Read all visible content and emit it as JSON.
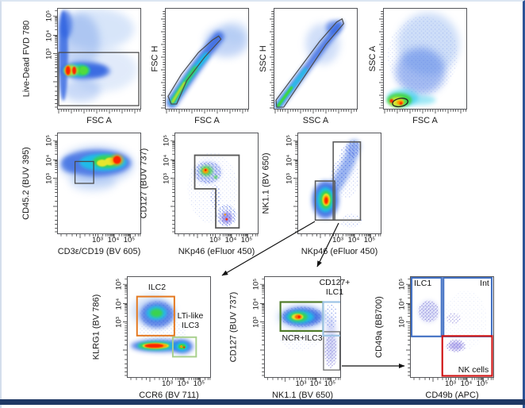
{
  "figure": {
    "description": "Flow cytometry gating strategy for innate lymphoid cell (ILC) and NK cell subsets",
    "border_accent_color": "#2E5496",
    "bottom_bar_color": "#1F3864"
  },
  "chart_data": [
    {
      "id": "viability-plot",
      "type": "scatter",
      "xlabel": "FSC A",
      "ylabel": "Live-Dead FVD 780",
      "xscale": "linear",
      "yscale": "log",
      "yticks": [
        "10³",
        "10⁴",
        "10⁵"
      ],
      "gates": [
        {
          "label": "",
          "shape": "rectangle",
          "color": "#4A4A4A",
          "note": "live cells, FVD-low, spans full FSC range below 10³"
        }
      ],
      "clusters": [
        {
          "x_frac": 0.12,
          "y_frac": 0.38,
          "intensity": "red-hot"
        },
        {
          "x_frac": 0.2,
          "y_frac": 0.38,
          "intensity": "red-hot"
        },
        {
          "x_frac": 0.31,
          "y_frac": 0.38,
          "intensity": "green"
        },
        {
          "x_frac": 0.5,
          "y_frac": 0.8,
          "intensity": "diffuse-blue"
        }
      ]
    },
    {
      "id": "fsc-singlets-plot",
      "type": "scatter",
      "xlabel": "FSC A",
      "ylabel": "FSC H",
      "xscale": "linear",
      "yscale": "linear",
      "gates": [
        {
          "label": "",
          "shape": "polygon",
          "color": "#4A4A4A",
          "note": "singlet gate along FSC H = FSC A diagonal"
        }
      ],
      "clusters": [
        {
          "x_frac": 0.25,
          "y_frac": 0.25,
          "intensity": "green-core diagonal comet"
        }
      ]
    },
    {
      "id": "ssc-singlets-plot",
      "type": "scatter",
      "xlabel": "SSC A",
      "ylabel": "SSC H",
      "xscale": "linear",
      "yscale": "linear",
      "gates": [
        {
          "label": "",
          "shape": "polygon",
          "color": "#4A4A4A",
          "note": "singlet gate along SSC H = SSC A diagonal"
        }
      ],
      "clusters": [
        {
          "x_frac": 0.1,
          "y_frac": 0.1,
          "intensity": "cyan-green diagonal streak"
        }
      ]
    },
    {
      "id": "lymphocyte-plot",
      "type": "scatter",
      "xlabel": "FSC A",
      "ylabel": "SSC A",
      "xscale": "linear",
      "yscale": "linear",
      "gates": [
        {
          "label": "",
          "shape": "ellipse",
          "color": "#222222",
          "note": "small ellipse on dense FSC-low SSC-low cluster"
        }
      ],
      "clusters": [
        {
          "x_frac": 0.2,
          "y_frac": 0.07,
          "intensity": "red-yellow-green hotspot"
        },
        {
          "x_frac": 0.5,
          "y_frac": 0.6,
          "intensity": "diffuse-blue"
        }
      ]
    },
    {
      "id": "cd45-dump-plot",
      "type": "scatter",
      "xlabel": "CD3ε/CD19 (BV 605)",
      "ylabel": "CD45.2 (BUV 395)",
      "xscale": "log",
      "yscale": "log",
      "xticks": [
        "10³",
        "10⁴",
        "10⁵"
      ],
      "yticks": [
        "10³",
        "10⁴",
        "10⁵"
      ],
      "gates": [
        {
          "label": "",
          "shape": "rectangle",
          "color": "#4A4A4A",
          "note": "CD3ε/CD19-negative CD45.2+ lineage-negative gate"
        }
      ],
      "clusters": [
        {
          "x_frac": 0.55,
          "y_frac": 0.7,
          "intensity": "horizontal band, red core at right"
        }
      ]
    },
    {
      "id": "cd127-nkp46-plot",
      "type": "scatter",
      "xlabel": "NKp46 (eFluor 450)",
      "ylabel": "CD127 (BUV 737)",
      "xscale": "log",
      "yscale": "log",
      "xticks": [
        "10³",
        "10⁴",
        "10⁵"
      ],
      "yticks": [
        "10³",
        "10⁴",
        "10⁵"
      ],
      "gates": [
        {
          "label": "",
          "shape": "polygon",
          "color": "#5A5A5A",
          "note": "L-shaped gate: CD127+ cells plus NKp46+ CD127- cells"
        }
      ],
      "clusters": [
        {
          "x_frac": 0.38,
          "y_frac": 0.62,
          "intensity": "green-orange speckle (CD127+)"
        },
        {
          "x_frac": 0.62,
          "y_frac": 0.18,
          "intensity": "blue-purple speckle (NKp46+)"
        }
      ]
    },
    {
      "id": "nk11-nkp46-plot",
      "type": "scatter",
      "xlabel": "NKp46 (eFluor 450)",
      "ylabel": "NK1.1 (BV 650)",
      "xscale": "log",
      "yscale": "log",
      "xticks": [
        "10³",
        "10⁴",
        "10⁵"
      ],
      "yticks": [
        "10³",
        "10⁴",
        "10⁵"
      ],
      "gates": [
        {
          "label": "",
          "shape": "rectangle",
          "color": "#5A5A5A",
          "note": "NKp46- NK1.1-low gate -> KLRG1/CCR6 plot"
        },
        {
          "label": "",
          "shape": "rectangle",
          "color": "#5A5A5A",
          "note": "NKp46+ gate -> CD127/NK1.1 plot"
        }
      ],
      "clusters": [
        {
          "x_frac": 0.33,
          "y_frac": 0.33,
          "intensity": "red-hot core"
        },
        {
          "x_frac": 0.65,
          "y_frac": 0.8,
          "intensity": "diagonal blue cloud to NK1.1+NKp46+"
        }
      ]
    },
    {
      "id": "klrg1-ccr6-plot",
      "type": "scatter",
      "xlabel": "CCR6 (BV 711)",
      "ylabel": "KLRG1 (BV 786)",
      "xscale": "log",
      "yscale": "log",
      "xticks": [
        "10³",
        "10⁴",
        "10⁵"
      ],
      "yticks": [
        "10³",
        "10⁴",
        "10⁵"
      ],
      "gates": [
        {
          "label": "ILC2",
          "shape": "rectangle",
          "color": "#E4781E",
          "note": "KLRG1+ CCR6-"
        },
        {
          "label": "LTi-like ILC3",
          "shape": "rectangle",
          "color": "#A8D08D",
          "note": "KLRG1- CCR6+"
        }
      ],
      "clusters": [
        {
          "x_frac": 0.3,
          "y_frac": 0.65,
          "intensity": "green blob in ILC2 gate"
        },
        {
          "x_frac": 0.3,
          "y_frac": 0.3,
          "intensity": "red-hot horizontal band"
        },
        {
          "x_frac": 0.67,
          "y_frac": 0.3,
          "intensity": "green blob in LTi-like ILC3 gate"
        }
      ]
    },
    {
      "id": "cd127-nk11-plot",
      "type": "scatter",
      "xlabel": "NK1.1 (BV 650)",
      "ylabel": "CD127 (BUV 737)",
      "xscale": "log",
      "yscale": "log",
      "xticks": [
        "10³",
        "10⁴",
        "10⁵"
      ],
      "yticks": [
        "10³",
        "10⁴",
        "10⁵"
      ],
      "gates": [
        {
          "label": "CD127+ ILC1",
          "shape": "rectangle",
          "color": "#9CC3E5",
          "note": "NK1.1+ CD127+"
        },
        {
          "label": "NCR+ILC3",
          "shape": "rectangle",
          "color": "#4E7A28",
          "note": "NK1.1- CD127+"
        },
        {
          "label": "",
          "shape": "rectangle",
          "color": "#6A6A6A",
          "note": "NK1.1+ CD127- -> CD49a/CD49b plot"
        }
      ],
      "clusters": [
        {
          "x_frac": 0.4,
          "y_frac": 0.6,
          "intensity": "red-orange core in NCR+ILC3 gate"
        },
        {
          "x_frac": 0.85,
          "y_frac": 0.4,
          "intensity": "blue-purple column NK1.1+"
        }
      ]
    },
    {
      "id": "cd49a-cd49b-plot",
      "type": "scatter",
      "xlabel": "CD49b (APC)",
      "ylabel": "CD49a (BB700)",
      "xscale": "log",
      "yscale": "log",
      "xticks": [
        "10³",
        "10⁴",
        "10⁵"
      ],
      "yticks": [
        "10³",
        "10⁴",
        "10⁵"
      ],
      "gates": [
        {
          "label": "ILC1",
          "shape": "rectangle",
          "color": "#4472C4",
          "note": "CD49a+ CD49b-"
        },
        {
          "label": "Int",
          "shape": "rectangle",
          "color": "#4472C4",
          "note": "CD49a+ CD49b+"
        },
        {
          "label": "NK cells",
          "shape": "rectangle",
          "color": "#D01414",
          "note": "CD49a- CD49b+"
        }
      ],
      "clusters": [
        {
          "x_frac": 0.22,
          "y_frac": 0.65,
          "intensity": "sparse purple (ILC1)"
        },
        {
          "x_frac": 0.55,
          "y_frac": 0.3,
          "intensity": "sparse purple (NK cells)"
        }
      ]
    }
  ],
  "arrows": [
    {
      "from": "NKp46- NK1.1-low gate",
      "to": "KLRG1 vs CCR6 plot"
    },
    {
      "from": "NKp46+ gate",
      "to": "CD127 vs NK1.1 plot"
    },
    {
      "from": "NK1.1+ CD127- gate",
      "to": "CD49a vs CD49b plot"
    }
  ]
}
